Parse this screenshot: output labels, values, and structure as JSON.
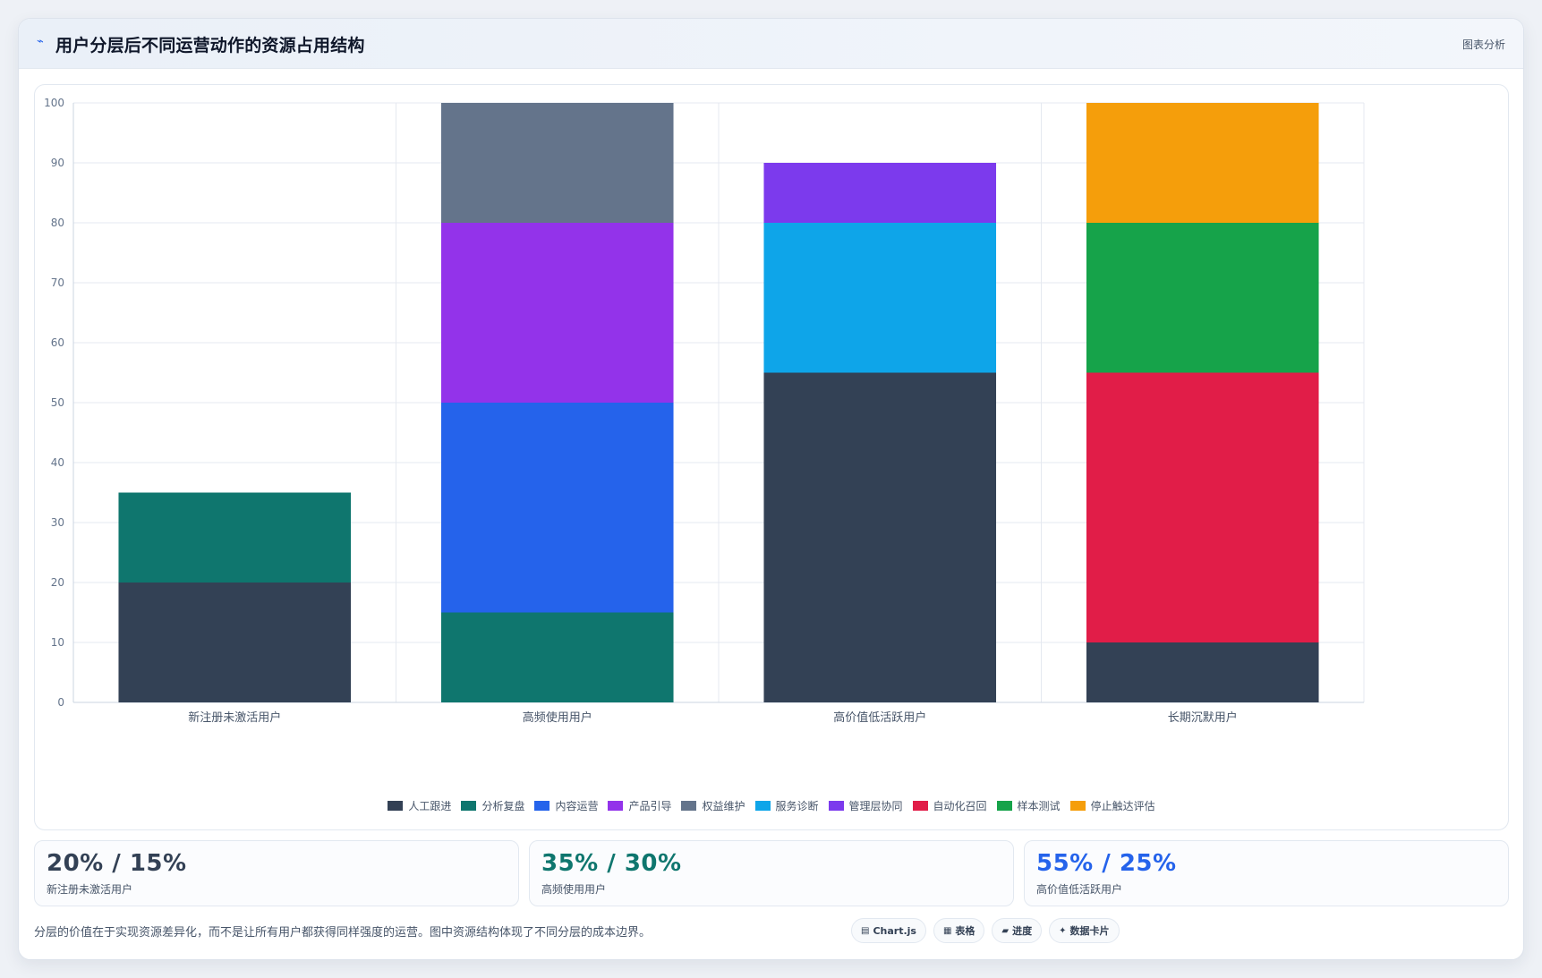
{
  "header": {
    "title": "用户分层后不同运营动作的资源占用结构",
    "right_label": "图表分析"
  },
  "chart_data": {
    "type": "bar",
    "stacked": true,
    "categories": [
      "新注册未激活用户",
      "高频使用用户",
      "高价值低活跃用户",
      "长期沉默用户"
    ],
    "ylim": [
      0,
      100
    ],
    "yticks": [
      0,
      10,
      20,
      30,
      40,
      50,
      60,
      70,
      80,
      90,
      100
    ],
    "grid": true,
    "legend_position": "bottom",
    "series": [
      {
        "name": "人工跟进",
        "color": "#334155",
        "values": [
          20,
          0,
          55,
          10
        ]
      },
      {
        "name": "分析复盘",
        "color": "#0f766e",
        "values": [
          15,
          15,
          0,
          0
        ]
      },
      {
        "name": "内容运营",
        "color": "#2563eb",
        "values": [
          0,
          35,
          0,
          0
        ]
      },
      {
        "name": "产品引导",
        "color": "#9333ea",
        "values": [
          0,
          30,
          0,
          0
        ]
      },
      {
        "name": "权益维护",
        "color": "#64748b",
        "values": [
          0,
          20,
          0,
          0
        ]
      },
      {
        "name": "服务诊断",
        "color": "#0ea5e9",
        "values": [
          0,
          0,
          25,
          0
        ]
      },
      {
        "name": "管理层协同",
        "color": "#7c3aed",
        "values": [
          0,
          0,
          10,
          0
        ]
      },
      {
        "name": "自动化召回",
        "color": "#e11d48",
        "values": [
          0,
          0,
          0,
          45
        ]
      },
      {
        "name": "样本测试",
        "color": "#16a34a",
        "values": [
          0,
          0,
          0,
          25
        ]
      },
      {
        "name": "停止触达评估",
        "color": "#f59e0b",
        "values": [
          0,
          0,
          0,
          20
        ]
      }
    ]
  },
  "stats": [
    {
      "value": "20% / 15%",
      "label": "新注册未激活用户",
      "color": "#334155"
    },
    {
      "value": "35% / 30%",
      "label": "高频使用用户",
      "color": "#0f766e"
    },
    {
      "value": "55% / 25%",
      "label": "高价值低活跃用户",
      "color": "#2563eb"
    }
  ],
  "footer": {
    "note": "分层的价值在于实现资源差异化，而不是让所有用户都获得同样强度的运营。图中资源结构体现了不同分层的成本边界。"
  },
  "badges": [
    {
      "icon": "chart-icon",
      "glyph": "▤",
      "label": "Chart.js"
    },
    {
      "icon": "table-icon",
      "glyph": "▦",
      "label": "表格"
    },
    {
      "icon": "progress-icon",
      "glyph": "▰",
      "label": "进度"
    },
    {
      "icon": "data-card-icon",
      "glyph": "✦",
      "label": "数据卡片"
    }
  ]
}
